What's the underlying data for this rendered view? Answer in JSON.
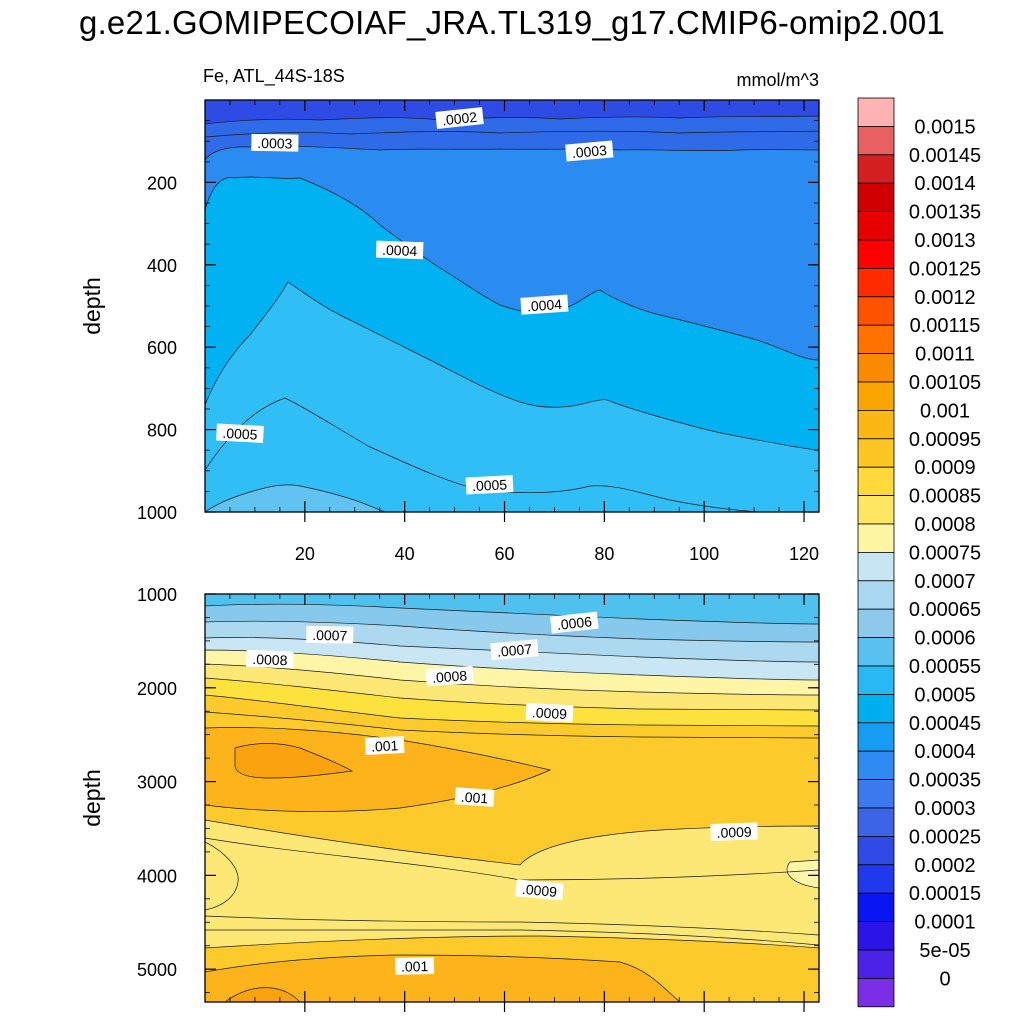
{
  "title": "g.e21.GOMIPECOIAF_JRA.TL319_g17.CMIP6-omip2.001",
  "variable_label": "Fe, ATL_44S-18S",
  "units_label": "mmol/m^3",
  "colors": {
    "upper_band_1": "#2f4be6",
    "upper_band_2": "#2f6be9",
    "upper_band_3": "#2a8bf0",
    "upper_band_4": "#00b2f2",
    "upper_band_5": "#2fbef6",
    "upper_band_6": "#60c3f2",
    "lower_band_1": "#4fc1ef",
    "lower_band_2": "#86c9ec",
    "lower_band_3": "#acd9f0",
    "lower_band_4": "#c8e6f4",
    "lower_band_5": "#fef6a6",
    "lower_band_6": "#fde775",
    "lower_band_7": "#fde13d",
    "lower_band_8": "#fcca2a",
    "lower_band_9": "#fcb41a",
    "lower_band_10": "#fba20f",
    "lower_band_11": "#f99106"
  },
  "chart_data": [
    {
      "type": "contour",
      "panel": "upper",
      "xlabel": "",
      "ylabel": "depth",
      "xlim": [
        0,
        123
      ],
      "ylim": [
        1000,
        0
      ],
      "x_ticks": [
        20,
        40,
        60,
        80,
        100,
        120
      ],
      "y_ticks": [
        200,
        400,
        600,
        800,
        1000
      ],
      "contour_labels": [
        {
          "text": ".0002",
          "x": 51,
          "y": 45
        },
        {
          "text": ".0003",
          "x": 14,
          "y": 105
        },
        {
          "text": ".0003",
          "x": 77,
          "y": 125
        },
        {
          "text": ".0004",
          "x": 39,
          "y": 365
        },
        {
          "text": ".0004",
          "x": 68,
          "y": 498
        },
        {
          "text": ".0005",
          "x": 7,
          "y": 810
        },
        {
          "text": ".0005",
          "x": 57,
          "y": 935
        }
      ]
    },
    {
      "type": "contour",
      "panel": "lower",
      "xlabel": "",
      "ylabel": "depth",
      "xlim": [
        0,
        123
      ],
      "ylim": [
        5350,
        1000
      ],
      "y_ticks": [
        1000,
        2000,
        3000,
        4000,
        5000
      ],
      "contour_labels": [
        {
          "text": ".0006",
          "x": 74,
          "y": 1310
        },
        {
          "text": ".0007",
          "x": 25,
          "y": 1440
        },
        {
          "text": ".0007",
          "x": 62,
          "y": 1600
        },
        {
          "text": ".0008",
          "x": 13,
          "y": 1700
        },
        {
          "text": ".0008",
          "x": 49,
          "y": 1880
        },
        {
          "text": ".0009",
          "x": 69,
          "y": 2270
        },
        {
          "text": ".001",
          "x": 36,
          "y": 2620
        },
        {
          "text": ".001",
          "x": 54,
          "y": 3170
        },
        {
          "text": ".0009",
          "x": 106,
          "y": 3540
        },
        {
          "text": ".0009",
          "x": 67,
          "y": 4160
        },
        {
          "text": ".001",
          "x": 42,
          "y": 4970
        }
      ]
    }
  ],
  "colorbar": {
    "labels": [
      "0.0015",
      "0.00145",
      "0.0014",
      "0.00135",
      "0.0013",
      "0.00125",
      "0.0012",
      "0.00115",
      "0.0011",
      "0.00105",
      "0.001",
      "0.00095",
      "0.0009",
      "0.00085",
      "0.0008",
      "0.00075",
      "0.0007",
      "0.00065",
      "0.0006",
      "0.00055",
      "0.0005",
      "0.00045",
      "0.0004",
      "0.00035",
      "0.0003",
      "0.00025",
      "0.0002",
      "0.00015",
      "0.0001",
      "5e-05",
      "0"
    ],
    "colors": [
      "#ffb3b3",
      "#e86060",
      "#d42020",
      "#d00000",
      "#e60000",
      "#ff0000",
      "#ff2a00",
      "#ff5200",
      "#ff7200",
      "#fa8a00",
      "#fba500",
      "#fcb714",
      "#fcc624",
      "#fdd93a",
      "#fde762",
      "#fef5a2",
      "#c6e6f4",
      "#aad8f0",
      "#8ec9ec",
      "#58c1f0",
      "#28b9f4",
      "#00aff0",
      "#169df3",
      "#2f8af1",
      "#3a7aee",
      "#3c64e6",
      "#304ae6",
      "#2038ee",
      "#0a16f2",
      "#2a14e6",
      "#4b22e8",
      "#7a2fe6"
    ]
  }
}
